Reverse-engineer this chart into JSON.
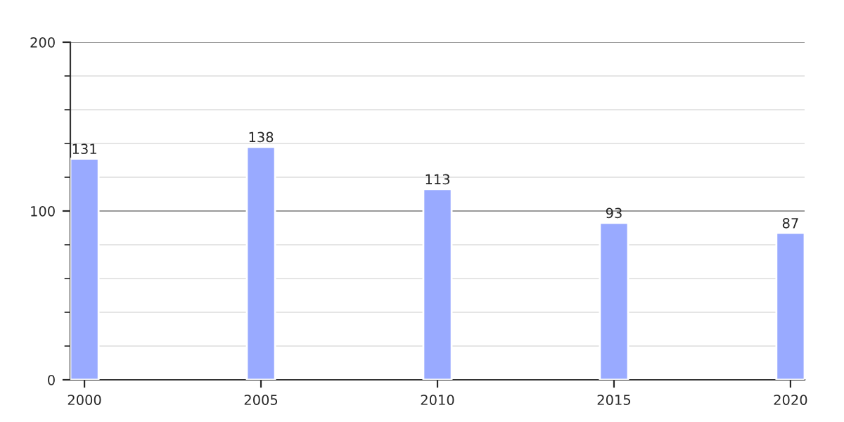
{
  "chart_data": {
    "type": "bar",
    "categories": [
      "2000",
      "2005",
      "2010",
      "2015",
      "2020"
    ],
    "values": [
      131,
      138,
      113,
      93,
      87
    ],
    "color": "#99aaff",
    "ylim": [
      0,
      200
    ],
    "yticks": [
      0,
      100,
      200
    ],
    "grid": "y",
    "data_labels": true
  }
}
